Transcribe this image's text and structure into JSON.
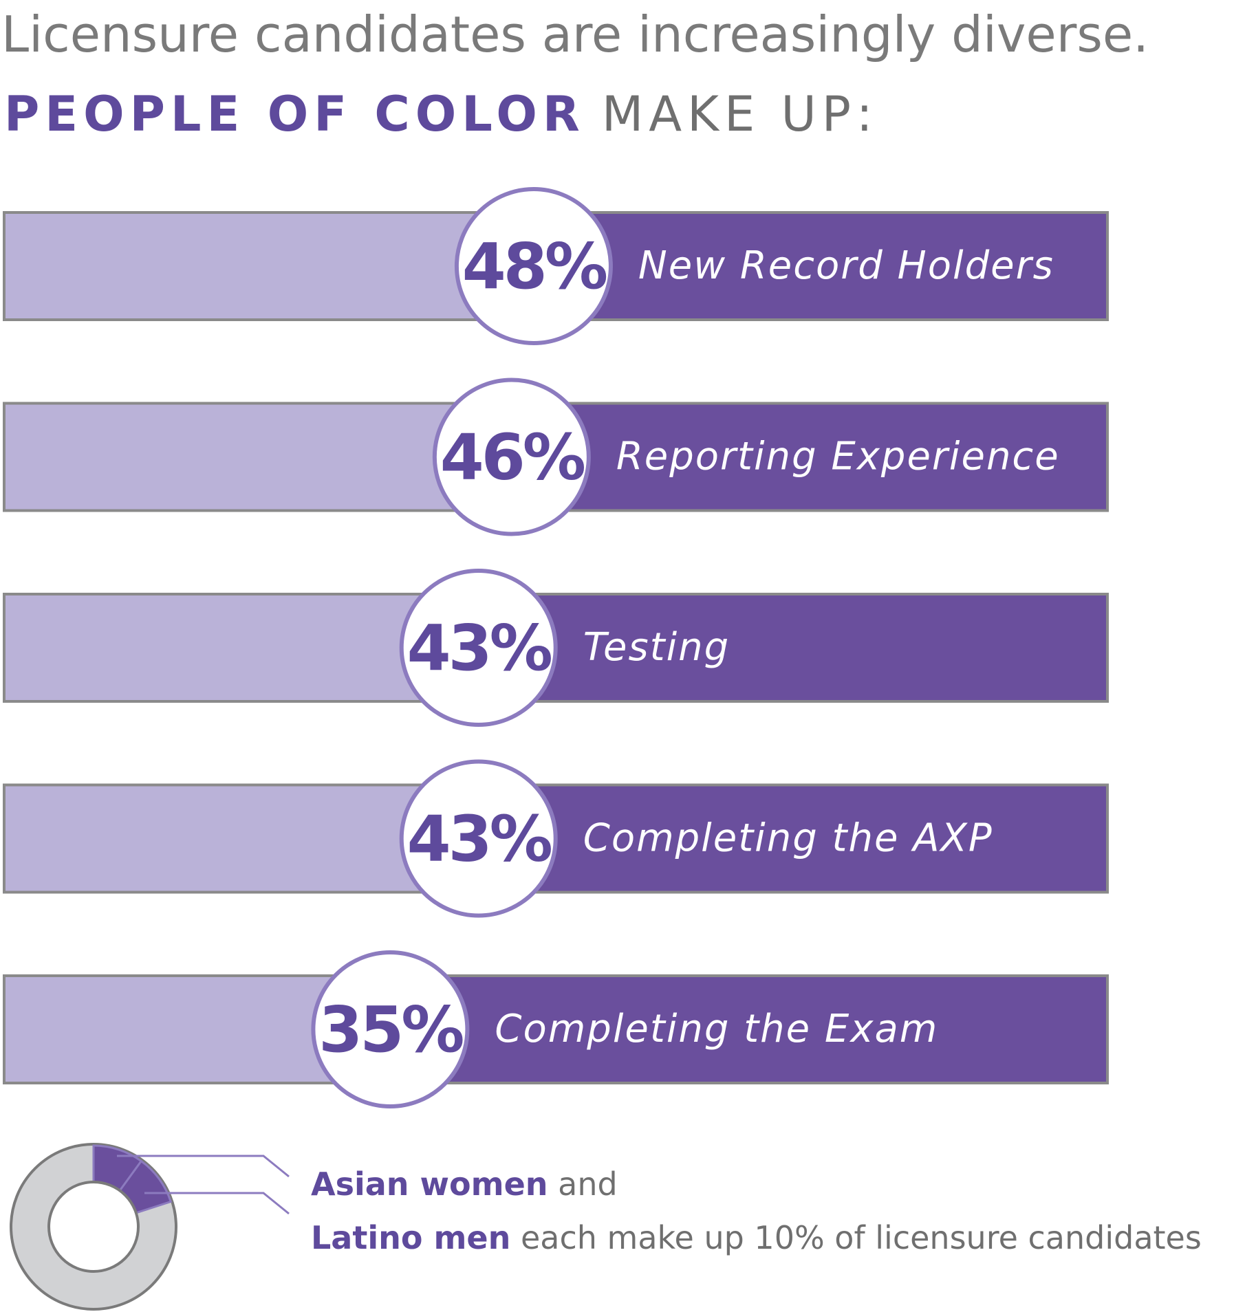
{
  "chart_data": [
    {
      "type": "bar",
      "title": "Licensure candidates are increasingly diverse.",
      "subtitle_highlight": "PEOPLE OF COLOR",
      "subtitle": "MAKE UP:",
      "categories": [
        "New Record Holders",
        "Reporting Experience",
        "Testing",
        "Completing the AXP",
        "Completing the Exam"
      ],
      "values": [
        48,
        46,
        43,
        43,
        35
      ],
      "value_labels": [
        "48%",
        "46%",
        "43%",
        "43%",
        "35%"
      ],
      "xlim": [
        0,
        100
      ],
      "color": "#bab2d8",
      "remainder_color": "#6a4f9d"
    },
    {
      "type": "pie",
      "categories": [
        "Asian women",
        "Latino men"
      ],
      "values": [
        10,
        10
      ],
      "connector": "and",
      "note": "each make up 10% of licensure candidates",
      "color": "#6a4f9d"
    }
  ]
}
